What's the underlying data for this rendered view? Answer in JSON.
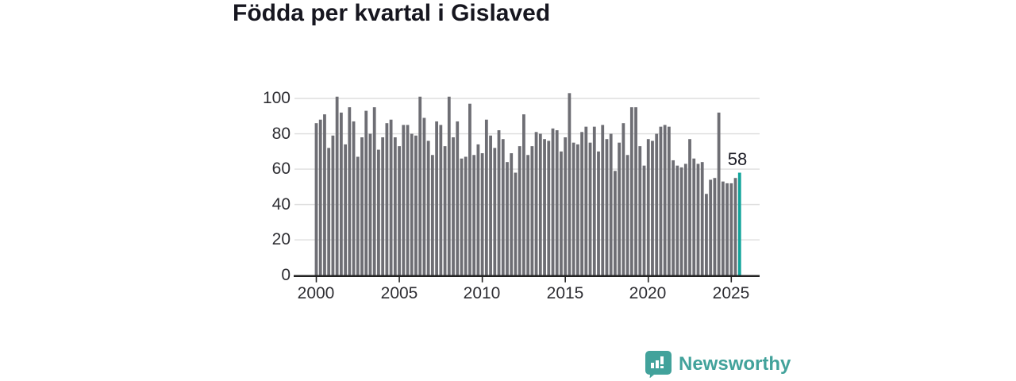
{
  "title": "Födda per kvartal i Gislaved",
  "annotation": {
    "last_value_label": "58"
  },
  "logo": {
    "text": "Newsworthy"
  },
  "colors": {
    "background": "#ffffff",
    "bar": "#6e6e74",
    "highlight": "#12a49b",
    "grid": "#dddddd",
    "axis": "#222222",
    "title_text": "#16161f",
    "tick_text": "#2e2e33",
    "brand": "#42a29b"
  },
  "chart_data": {
    "type": "bar",
    "title": "Födda per kvartal i Gislaved",
    "x_unit": "quarter",
    "x_start": "2000-Q1",
    "x_end": "2025-Q3",
    "xlabel": "",
    "ylabel": "",
    "ylim": [
      0,
      110
    ],
    "grid": true,
    "legend": false,
    "xticks": {
      "years": [
        2000,
        2005,
        2010,
        2015,
        2020,
        2025
      ],
      "labels": [
        "2000",
        "2005",
        "2010",
        "2015",
        "2020",
        "2025"
      ]
    },
    "yticks": {
      "values": [
        0,
        20,
        40,
        60,
        80,
        100
      ],
      "labels": [
        "0",
        "20",
        "40",
        "60",
        "80",
        "100"
      ]
    },
    "highlight_last_bar": true,
    "last_bar_label": "58",
    "values": [
      86,
      88,
      91,
      72,
      79,
      101,
      92,
      74,
      95,
      87,
      67,
      78,
      93,
      80,
      95,
      71,
      78,
      86,
      88,
      78,
      73,
      85,
      85,
      80,
      79,
      101,
      89,
      76,
      68,
      87,
      85,
      73,
      101,
      78,
      87,
      66,
      67,
      97,
      68,
      74,
      69,
      88,
      79,
      72,
      82,
      77,
      64,
      69,
      58,
      73,
      91,
      68,
      73,
      81,
      80,
      77,
      76,
      83,
      82,
      70,
      78,
      103,
      75,
      74,
      81,
      84,
      75,
      84,
      70,
      85,
      77,
      80,
      59,
      75,
      86,
      68,
      95,
      95,
      73,
      62,
      77,
      76,
      80,
      84,
      85,
      84,
      65,
      62,
      61,
      63,
      77,
      66,
      63,
      64,
      46,
      54,
      55,
      92,
      53,
      52,
      52,
      55,
      58
    ]
  }
}
